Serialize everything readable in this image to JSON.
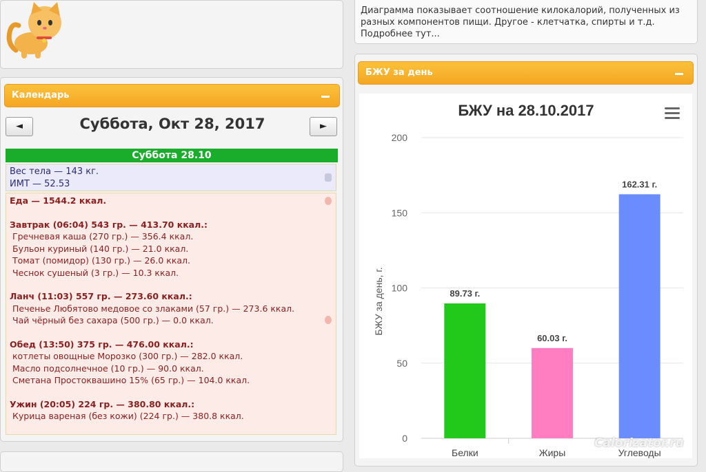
{
  "info_panel": {
    "text": "Диаграмма показывает соотношение килокалорий, полученных из разных компонентов пищи. Другое - клетчатка, спирты и т.д. Подробнее тут..."
  },
  "calendar": {
    "header_label": "Календарь",
    "prev_label": "◄",
    "next_label": "►",
    "date_title": "Суббота, Окт 28, 2017",
    "day_header": "Суббота 28.10",
    "weight_text": "Вес тела — 143 кг.",
    "bmi_text": "ИМТ — 52.53",
    "food_total": "Еда — 1544.2 ккал.",
    "meals": [
      {
        "title": "Завтрак (06:04) 543 гр. — 413.70 ккал.:",
        "items": [
          "Гречневая каша (270 гр.) — 356.4 ккал.",
          "Бульон куриный (140 гр.) — 21.0 ккал.",
          "Томат (помидор) (130 гр.) — 26.0 ккал.",
          "Чеснок сушеный (3 гр.) — 10.3 ккал."
        ]
      },
      {
        "title": "Ланч (11:03) 557 гр. — 273.60 ккал.:",
        "items": [
          "Печенье Любятово медовое со злаками (57 гр.) — 273.6 ккал.",
          "Чай чёрный без сахара (500 гр.) — 0.0 ккал."
        ]
      },
      {
        "title": "Обед (13:50) 375 гр. — 476.00 ккал.:",
        "items": [
          "котлеты овощные Морозко (300 гр.) — 282.0 ккал.",
          "Масло подсолнечное (10 гр.) — 90.0 ккал.",
          "Сметана Простоквашино 15% (65 гр.) — 104.0 ккал."
        ]
      },
      {
        "title": "Ужин (20:05) 224 гр. — 380.80 ккал.:",
        "items": [
          "Курица вареная (без кожи) (224 гр.) — 380.8 ккал."
        ]
      }
    ]
  },
  "bju_panel": {
    "header_label": "БЖУ за день"
  },
  "watermark": "Calorizator.ru",
  "colors": {
    "orange": "#f5a623",
    "green": "#1aad2c",
    "protein": "#22c81a",
    "fat": "#ff7dc0",
    "carbs": "#6b8cff"
  },
  "icons": {
    "cat": "cat-mascot-icon",
    "menu": "hamburger-menu-icon",
    "collapse": "minus-icon"
  },
  "chart_data": {
    "type": "bar",
    "title": "БЖУ на 28.10.2017",
    "ylabel": "БЖУ за день, г.",
    "xlabel": "",
    "ylim": [
      0,
      200
    ],
    "yticks": [
      0,
      50,
      100,
      150,
      200
    ],
    "grid": true,
    "legend": "none",
    "categories": [
      "Белки",
      "Жиры",
      "Углеводы"
    ],
    "values": [
      89.73,
      60.03,
      162.31
    ],
    "labels": [
      "89.73 г.",
      "60.03 г.",
      "162.31 г."
    ],
    "colors": [
      "#22c81a",
      "#ff7dc0",
      "#6b8cff"
    ]
  }
}
